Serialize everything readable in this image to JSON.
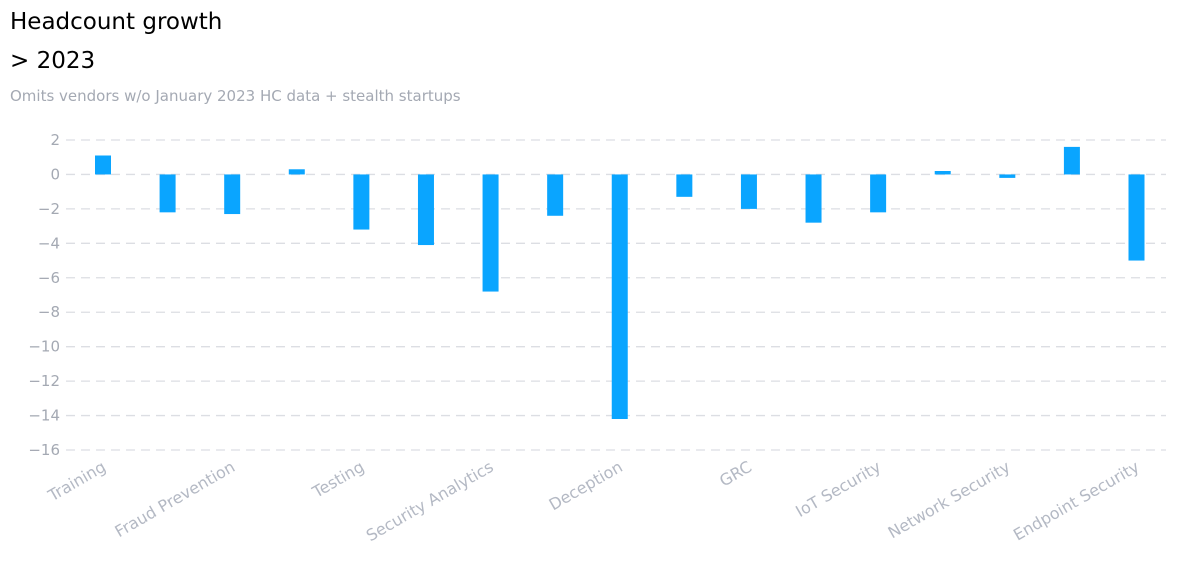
{
  "title_line1": "Headcount growth",
  "title_line2": "> 2023",
  "subtitle": "Omits vendors w/o January 2023 HC data + stealth startups",
  "colors": {
    "bar": "#0aa5ff",
    "grid": "#dcdee3",
    "axis_text": "#a4a9b3",
    "category_text": "#b4b9c4"
  },
  "chart_data": {
    "type": "bar",
    "categories": [
      "Training",
      "Fraud Prevention",
      "Testing",
      "Security Analytics",
      "Deception",
      "GRC",
      "IoT Security",
      "Network Security",
      "Endpoint Security"
    ],
    "bar_values": [
      1.1,
      -2.2,
      -2.3,
      0.3,
      -3.2,
      -4.1,
      -6.8,
      -2.4,
      -14.2,
      -1.3,
      -2.0,
      -2.8,
      -2.2,
      0.2,
      -0.2,
      1.6,
      -5.0
    ],
    "label_every": 2,
    "ylim": [
      -16,
      2
    ],
    "yticks": [
      2,
      0,
      -2,
      -4,
      -6,
      -8,
      -10,
      -12,
      -14,
      -16
    ],
    "ytick_labels": [
      "2",
      "0",
      "−2",
      "−4",
      "−6",
      "−8",
      "−10",
      "−12",
      "−14",
      "−16"
    ],
    "grid": true,
    "grid_style": "dashed",
    "title": "",
    "xlabel": "",
    "ylabel": ""
  }
}
